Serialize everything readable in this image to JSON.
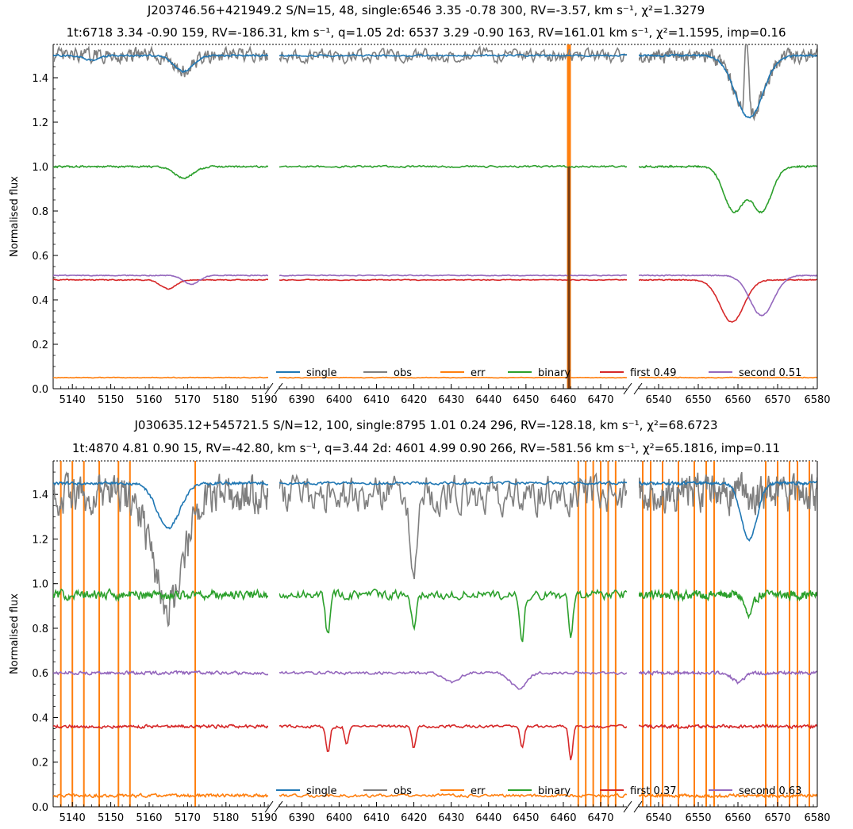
{
  "chart_data": [
    {
      "type": "line",
      "title_line1": "J203746.56+421949.2 S/N=15, 48, single:6546 3.35 -0.78 300, RV=-3.57, km s⁻¹, χ²=1.3279",
      "title_line2": "1t:6718 3.34 -0.90 159, RV=-186.31, km s⁻¹, q=1.05 2d: 6537 3.29 -0.90 163, RV=161.01 km s⁻¹, χ²=1.1595, imp=0.16",
      "ylabel": "Normalised flux",
      "ylim": [
        0.0,
        1.55
      ],
      "yticks": [
        "0.0",
        "0.2",
        "0.4",
        "0.6",
        "0.8",
        "1.0",
        "1.2",
        "1.4"
      ],
      "segments": [
        {
          "xlim": [
            5135,
            5191
          ],
          "xticks": [
            "5140",
            "5150",
            "5160",
            "5170",
            "5180",
            "5190"
          ]
        },
        {
          "xlim": [
            6384,
            6477
          ],
          "xticks": [
            "6390",
            "6400",
            "6410",
            "6420",
            "6430",
            "6440",
            "6450",
            "6460",
            "6470"
          ]
        },
        {
          "xlim": [
            6535,
            6580
          ],
          "xticks": [
            "6540",
            "6550",
            "6560",
            "6570",
            "6580"
          ]
        }
      ],
      "legend": [
        "single",
        "obs",
        "err",
        "binary",
        "first 0.49",
        "second 0.51"
      ],
      "legend_colors": [
        "#1f77b4",
        "#7f7f7f",
        "#ff7f0e",
        "#2ca02c",
        "#d62728",
        "#9467bd"
      ],
      "series": [
        {
          "name": "single",
          "offset": 0.5,
          "level": 1.0,
          "noise": 0.006,
          "lines": [
            [
              5169,
              0.07,
              2.5
            ],
            [
              5145,
              0.02,
              2
            ],
            [
              6562.8,
              0.28,
              3.5
            ],
            [
              6495,
              0.0,
              1
            ]
          ]
        },
        {
          "name": "obs",
          "offset": 0.5,
          "level": 1.0,
          "noise": 0.045,
          "lines": [
            [
              5169,
              0.07,
              2.5
            ],
            [
              6562.8,
              0.28,
              3.5
            ]
          ],
          "emission": [
            6562.2,
            0.35,
            0.5
          ]
        },
        {
          "name": "binary",
          "offset": 0.0,
          "level": 1.0,
          "noise": 0.006,
          "lines": [
            [
              5169,
              0.05,
              2.5
            ],
            [
              6559,
              0.2,
              2.5
            ],
            [
              6566,
              0.2,
              2.5
            ]
          ]
        },
        {
          "name": "first 0.49",
          "offset": 0.0,
          "level": 0.49,
          "noise": 0.003,
          "lines": [
            [
              5165,
              0.04,
              2
            ],
            [
              6558.5,
              0.19,
              3
            ]
          ]
        },
        {
          "name": "second 0.51",
          "offset": 0.0,
          "level": 0.51,
          "noise": 0.003,
          "lines": [
            [
              5171,
              0.04,
              2
            ],
            [
              6566,
              0.18,
              3
            ]
          ]
        },
        {
          "name": "err",
          "offset": 0.0,
          "level": 0.05,
          "noise": 0.002,
          "lines": [],
          "spikes": [
            6461.5
          ]
        }
      ]
    },
    {
      "type": "line",
      "title_line1": "J030635.12+545721.5 S/N=12, 100, single:8795 1.01 0.24 296, RV=-128.18, km s⁻¹, χ²=68.6723",
      "title_line2": "1t:4870 4.81 0.90 15, RV=-42.80, km s⁻¹, q=3.44 2d: 4601 4.99 0.90 266, RV=-581.56 km s⁻¹, χ²=65.1816, imp=0.11",
      "ylabel": "Normalised flux",
      "ylim": [
        0.0,
        1.55
      ],
      "yticks": [
        "0.0",
        "0.2",
        "0.4",
        "0.6",
        "0.8",
        "1.0",
        "1.2",
        "1.4"
      ],
      "segments": [
        {
          "xlim": [
            5135,
            5191
          ],
          "xticks": [
            "5140",
            "5150",
            "5160",
            "5170",
            "5180",
            "5190"
          ]
        },
        {
          "xlim": [
            6384,
            6477
          ],
          "xticks": [
            "6390",
            "6400",
            "6410",
            "6420",
            "6430",
            "6440",
            "6450",
            "6460",
            "6470"
          ]
        },
        {
          "xlim": [
            6535,
            6580
          ],
          "xticks": [
            "6540",
            "6550",
            "6560",
            "6570",
            "6580"
          ]
        }
      ],
      "legend": [
        "single",
        "obs",
        "err",
        "binary",
        "first 0.37",
        "second 0.63"
      ],
      "legend_colors": [
        "#1f77b4",
        "#7f7f7f",
        "#ff7f0e",
        "#2ca02c",
        "#d62728",
        "#9467bd"
      ],
      "series": [
        {
          "name": "single",
          "offset": 0.5,
          "level": 0.95,
          "noise": 0.01,
          "lines": [
            [
              5165,
              0.2,
              3
            ],
            [
              6562.8,
              0.25,
              2
            ]
          ]
        },
        {
          "name": "obs",
          "offset": 0.5,
          "level": 0.9,
          "noise": 0.12,
          "lines": [
            [
              5165,
              0.5,
              4
            ],
            [
              6420,
              0.3,
              1
            ]
          ]
        },
        {
          "name": "binary",
          "offset": 0.0,
          "level": 0.95,
          "noise": 0.03,
          "lines": [
            [
              6397,
              0.18,
              0.6
            ],
            [
              6420,
              0.15,
              0.6
            ],
            [
              6449,
              0.2,
              0.6
            ],
            [
              6462,
              0.2,
              0.6
            ],
            [
              6562.8,
              0.1,
              1
            ]
          ]
        },
        {
          "name": "first 0.37",
          "offset": 0.0,
          "level": 0.36,
          "noise": 0.01,
          "lines": [
            [
              6397,
              0.12,
              0.5
            ],
            [
              6402,
              0.08,
              0.5
            ],
            [
              6420,
              0.1,
              0.5
            ],
            [
              6449,
              0.1,
              0.5
            ],
            [
              6462,
              0.15,
              0.5
            ]
          ]
        },
        {
          "name": "second 0.63",
          "offset": 0.0,
          "level": 0.6,
          "noise": 0.01,
          "lines": [
            [
              6430,
              0.04,
              2
            ],
            [
              6448,
              0.07,
              2
            ],
            [
              6560,
              0.04,
              1.5
            ]
          ]
        },
        {
          "name": "err",
          "offset": 0.0,
          "level": 0.05,
          "noise": 0.01,
          "lines": [],
          "spikes": [
            5137,
            5140,
            5143,
            5147,
            5152,
            5155,
            5172,
            6464,
            6466,
            6468,
            6470,
            6472,
            6474,
            6536,
            6538,
            6541,
            6545,
            6549,
            6552,
            6554,
            6567,
            6570,
            6573,
            6575,
            6578
          ]
        }
      ]
    }
  ]
}
